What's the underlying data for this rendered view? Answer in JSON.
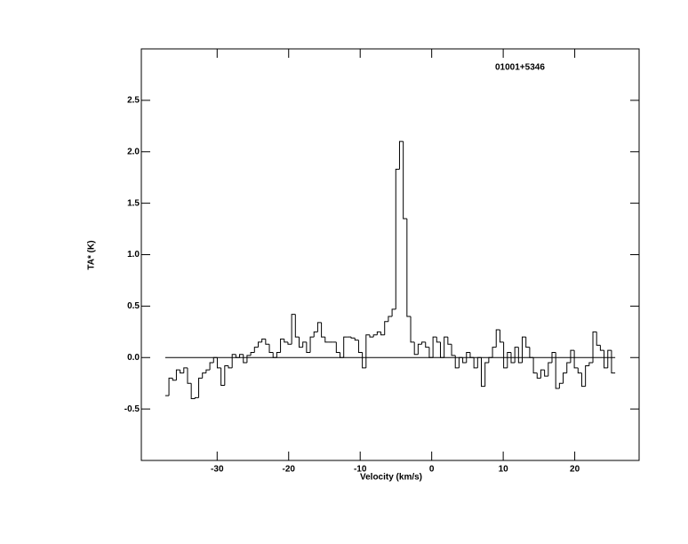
{
  "chart_data": {
    "type": "step",
    "annotation": "01001+5346",
    "xlabel": "Velocity (km/s)",
    "ylabel": "TA* (K)",
    "color": "#000000",
    "xlim": [
      -40.6,
      29.0
    ],
    "ylim": [
      -1.0,
      3.0
    ],
    "xticks": [
      -30,
      -20,
      -10,
      0,
      10,
      20
    ],
    "yticks": [
      {
        "value": -0.5,
        "label": "-0.5"
      },
      {
        "value": 0,
        "label": "0.0"
      },
      {
        "value": 0.5,
        "label": "0.5"
      },
      {
        "value": 1,
        "label": "1.0"
      },
      {
        "value": 1.5,
        "label": "1.5"
      },
      {
        "value": 2,
        "label": "2.0"
      },
      {
        "value": 2.5,
        "label": "2.5"
      }
    ],
    "x": [
      -37.0,
      -36.48,
      -35.96,
      -35.44,
      -34.92,
      -34.4,
      -33.88,
      -33.36,
      -32.84,
      -32.32,
      -31.8,
      -31.28,
      -30.76,
      -30.24,
      -29.72,
      -29.2,
      -28.68,
      -28.16,
      -27.64,
      -27.12,
      -26.6,
      -26.08,
      -25.56,
      -25.04,
      -24.52,
      -24.0,
      -23.48,
      -22.96,
      -22.44,
      -21.92,
      -21.4,
      -20.88,
      -20.36,
      -19.84,
      -19.32,
      -18.8,
      -18.28,
      -17.76,
      -17.24,
      -16.72,
      -16.2,
      -15.68,
      -15.16,
      -14.64,
      -14.12,
      -13.6,
      -13.08,
      -12.56,
      -12.04,
      -11.52,
      -11.0,
      -10.48,
      -9.96,
      -9.44,
      -8.92,
      -8.4,
      -7.88,
      -7.36,
      -6.84,
      -6.32,
      -5.8,
      -5.28,
      -4.76,
      -4.24,
      -3.72,
      -3.2,
      -2.68,
      -2.16,
      -1.64,
      -1.12,
      -0.6,
      -0.08,
      0.44,
      0.96,
      1.48,
      2.0,
      2.52,
      3.04,
      3.56,
      4.08,
      4.6,
      5.12,
      5.64,
      6.16,
      6.68,
      7.2,
      7.72,
      8.24,
      8.76,
      9.28,
      9.8,
      10.32,
      10.84,
      11.36,
      11.88,
      12.4,
      12.92,
      13.44,
      13.96,
      14.48,
      15.0,
      15.52,
      16.04,
      16.56,
      17.08,
      17.6,
      18.12,
      18.64,
      19.16,
      19.68,
      20.2,
      20.72,
      21.24,
      21.76,
      22.28,
      22.8,
      23.32,
      23.84,
      24.36,
      24.88,
      25.4
    ],
    "values": [
      -0.37,
      -0.2,
      -0.22,
      -0.12,
      -0.15,
      -0.1,
      -0.25,
      -0.4,
      -0.39,
      -0.2,
      -0.15,
      -0.12,
      -0.05,
      0.0,
      -0.1,
      -0.27,
      -0.08,
      -0.1,
      0.03,
      0.0,
      0.03,
      -0.05,
      0.02,
      0.05,
      0.1,
      0.15,
      0.18,
      0.13,
      0.05,
      0.0,
      0.05,
      0.18,
      0.15,
      0.13,
      0.42,
      0.2,
      0.1,
      0.15,
      0.05,
      0.2,
      0.25,
      0.34,
      0.2,
      0.15,
      0.15,
      0.15,
      0.05,
      0.0,
      0.2,
      0.2,
      0.19,
      0.17,
      0.05,
      -0.1,
      0.22,
      0.2,
      0.22,
      0.25,
      0.22,
      0.35,
      0.4,
      0.47,
      1.83,
      2.1,
      1.35,
      0.4,
      0.15,
      0.03,
      0.13,
      0.15,
      0.1,
      0.0,
      0.2,
      0.15,
      0.0,
      0.2,
      0.13,
      0.02,
      -0.1,
      0.0,
      -0.05,
      0.05,
      0.0,
      -0.1,
      0.0,
      -0.28,
      -0.05,
      0.0,
      0.1,
      0.27,
      0.15,
      -0.1,
      0.05,
      -0.05,
      0.1,
      -0.05,
      0.2,
      0.1,
      0.0,
      -0.15,
      -0.2,
      -0.12,
      -0.18,
      -0.05,
      0.05,
      -0.3,
      -0.25,
      -0.15,
      -0.05,
      0.07,
      -0.1,
      -0.15,
      -0.28,
      -0.08,
      -0.05,
      0.25,
      0.12,
      0.07,
      -0.1,
      0.07,
      -0.15
    ]
  }
}
